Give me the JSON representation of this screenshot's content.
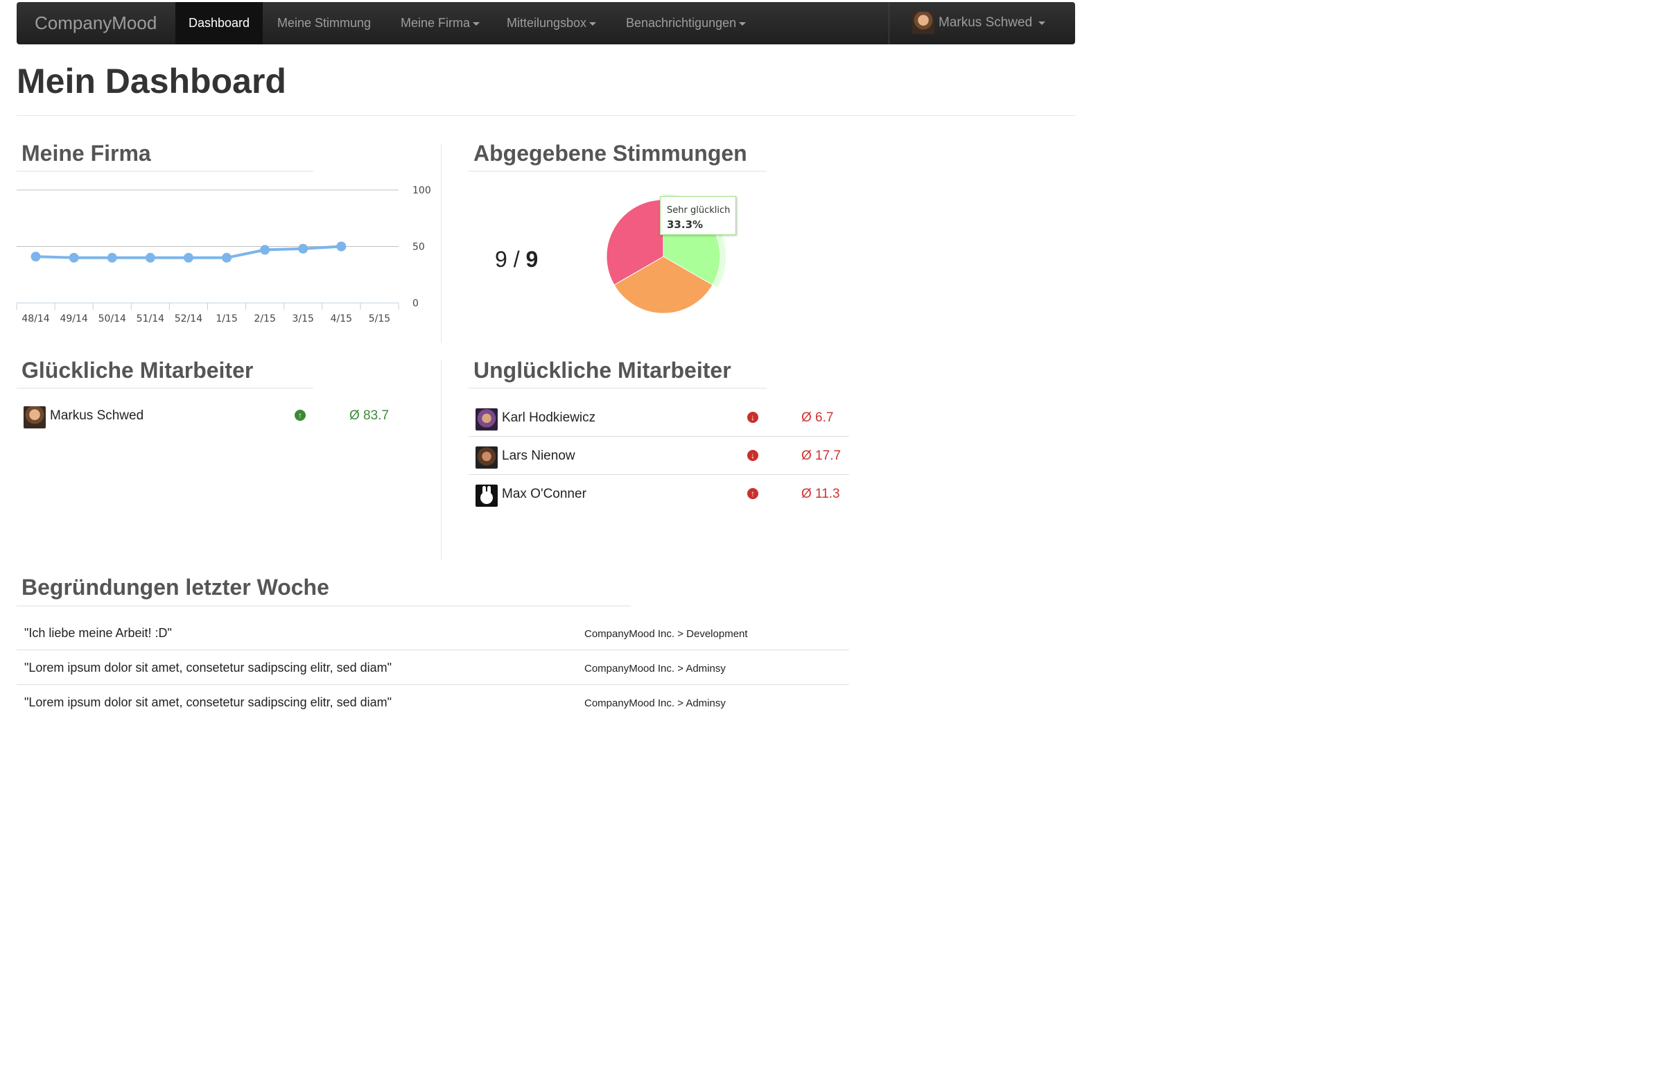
{
  "navbar": {
    "brand": "CompanyMood",
    "items": [
      {
        "label": "Dashboard"
      },
      {
        "label": "Meine Stimmung"
      },
      {
        "label": "Meine Firma"
      },
      {
        "label": "Mitteilungsbox"
      },
      {
        "label": "Benachrichtigungen"
      }
    ],
    "user_name": "Markus Schwed"
  },
  "page_title": "Mein Dashboard",
  "meine_firma": {
    "title": "Meine Firma",
    "chart_data": {
      "type": "line",
      "x": [
        "48/14",
        "49/14",
        "50/14",
        "51/14",
        "52/14",
        "1/15",
        "2/15",
        "3/15",
        "4/15",
        "5/15"
      ],
      "series": [
        {
          "values": [
            41,
            40,
            40,
            40,
            40,
            40,
            47,
            48,
            50,
            null
          ],
          "color": "#7cb5ec"
        }
      ],
      "ylim": [
        0,
        100
      ],
      "yticks": [
        "0",
        "50",
        "100"
      ],
      "grid": true
    }
  },
  "stimmungen": {
    "title": "Abgegebene Stimmungen",
    "count_given": "9",
    "count_sep": " / ",
    "count_total": "9",
    "chart_data": {
      "type": "pie",
      "slices": [
        {
          "name": "Sehr glücklich",
          "value": 33.3,
          "color": "#aaff99"
        },
        {
          "value": 33.3,
          "color": "#f7a35c"
        },
        {
          "value": 33.3,
          "color": "#f15c80"
        }
      ]
    },
    "tooltip": {
      "label": "Sehr glücklich",
      "value": "33.3%"
    }
  },
  "happy": {
    "title": "Glückliche Mitarbeiter",
    "rows": [
      {
        "name": "Markus Schwed",
        "trend": "up",
        "avg": "Ø 83.7"
      }
    ]
  },
  "unhappy": {
    "title": "Unglückliche Mitarbeiter",
    "rows": [
      {
        "name": "Karl Hodkiewicz",
        "trend": "down",
        "avg": "Ø 6.7"
      },
      {
        "name": "Lars Nienow",
        "trend": "down",
        "avg": "Ø 17.7"
      },
      {
        "name": "Max O'Conner",
        "trend": "up",
        "avg": "Ø 11.3"
      }
    ]
  },
  "reasons": {
    "title": "Begründungen letzter Woche",
    "rows": [
      {
        "quote": "\"Ich liebe meine Arbeit! :D\"",
        "dept": "CompanyMood Inc. > Development"
      },
      {
        "quote": "\"Lorem ipsum dolor sit amet, consetetur sadipscing elitr, sed diam\"",
        "dept": "CompanyMood Inc. > Adminsy"
      },
      {
        "quote": "\"Lorem ipsum dolor sit amet, consetetur sadipscing elitr, sed diam\"",
        "dept": "CompanyMood Inc. > Adminsy"
      }
    ]
  }
}
